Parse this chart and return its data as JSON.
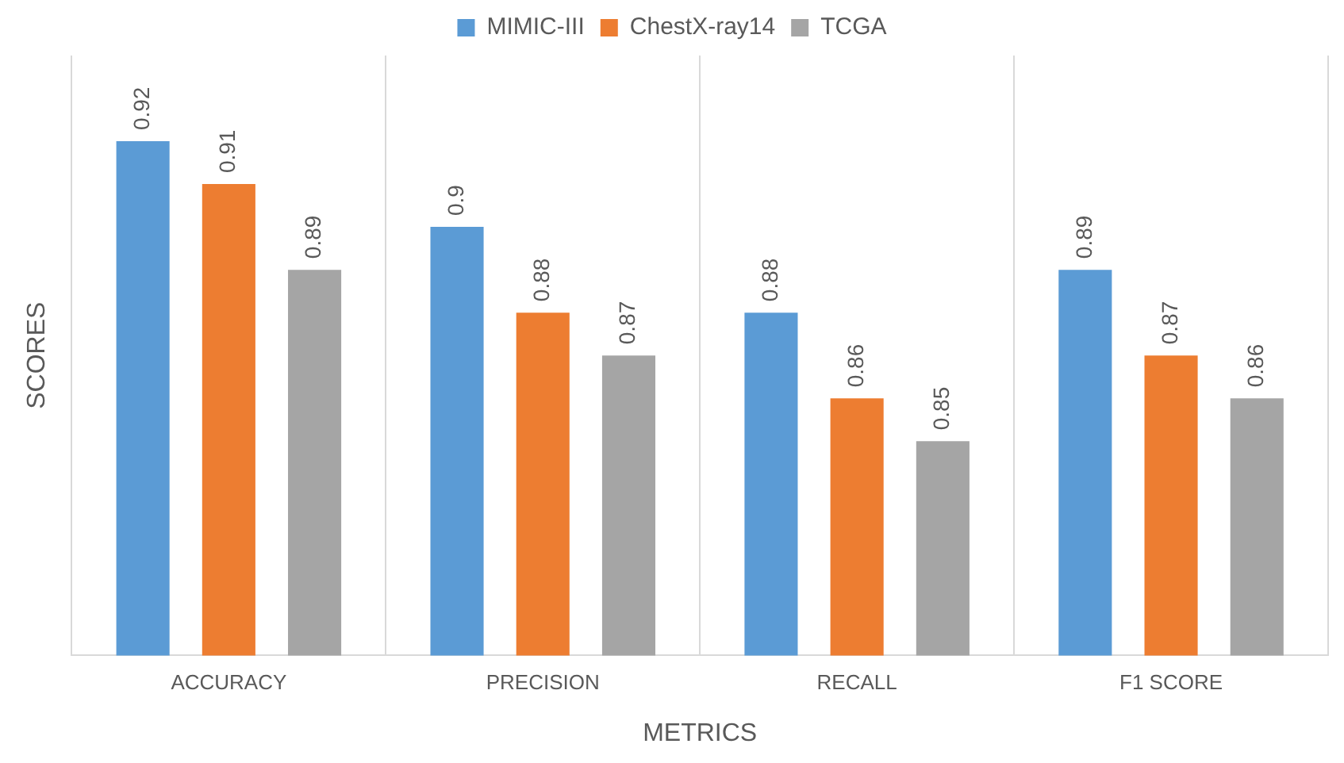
{
  "chart_data": {
    "type": "bar",
    "xlabel": "METRICS",
    "ylabel": "SCORES",
    "categories": [
      "ACCURACY",
      "PRECISION",
      "RECALL",
      "F1 SCORE"
    ],
    "series": [
      {
        "name": "MIMIC-III",
        "color": "#5b9bd5",
        "values": [
          0.92,
          0.9,
          0.88,
          0.89
        ]
      },
      {
        "name": "ChestX-ray14",
        "color": "#ed7d31",
        "values": [
          0.91,
          0.88,
          0.86,
          0.87
        ]
      },
      {
        "name": "TCGA",
        "color": "#a5a5a5",
        "values": [
          0.89,
          0.87,
          0.85,
          0.86
        ]
      }
    ],
    "ylim": [
      0.8,
      0.94
    ],
    "tick_labels": "x",
    "grid": "x",
    "legend": "top",
    "data_labels": true
  }
}
